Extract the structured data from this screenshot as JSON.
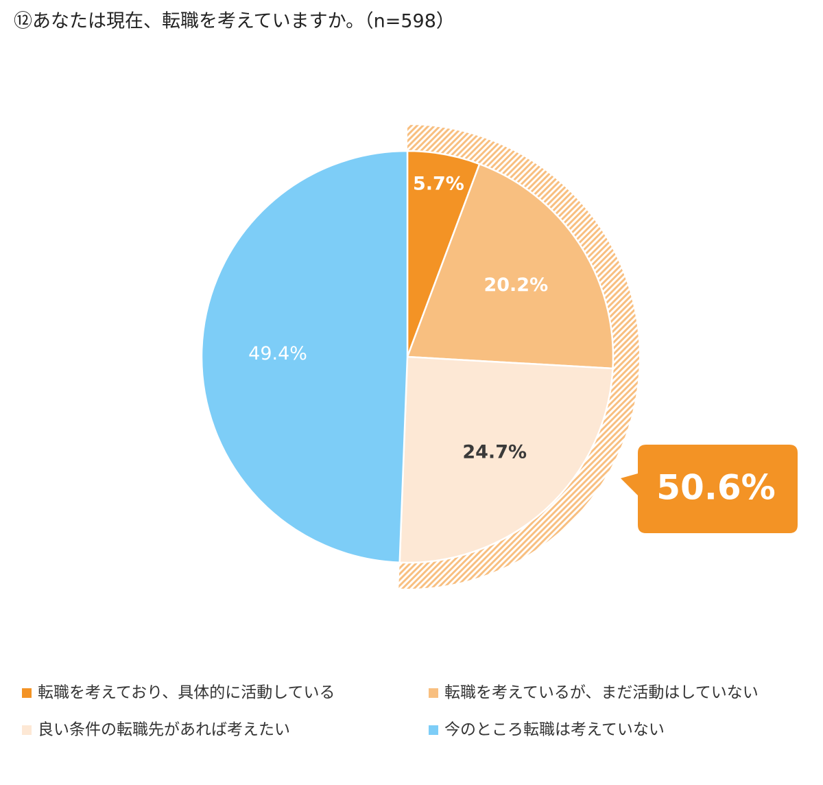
{
  "chart_data": {
    "type": "pie",
    "title": "⑫あなたは現在、転職を考えていますか。（n=598）",
    "categories": [
      "転職を考えており、具体的に活動している",
      "転職を考えているが、まだ活動はしていない",
      "良い条件の転職先があれば考えたい",
      "今のところ転職は考えていない"
    ],
    "values": [
      5.7,
      20.2,
      24.7,
      49.4
    ],
    "value_labels": [
      "5.7%",
      "20.2%",
      "24.7%",
      "49.4%"
    ],
    "colors": [
      "#f39325",
      "#f8bf80",
      "#fde8d5",
      "#7dcdf7"
    ],
    "annotation": "50.6%"
  }
}
